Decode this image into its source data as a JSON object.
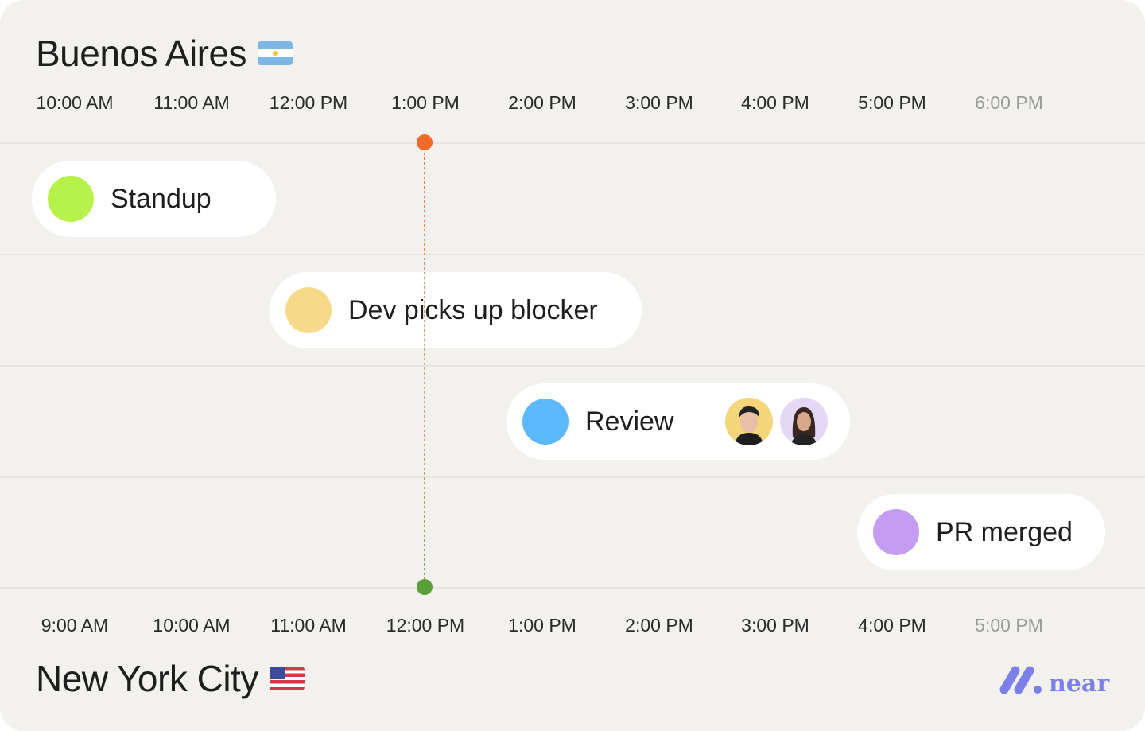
{
  "top_city": {
    "name": "Buenos Aires",
    "flag": "argentina-flag"
  },
  "bottom_city": {
    "name": "New York City",
    "flag": "us-flag"
  },
  "top_times": [
    "10:00 AM",
    "11:00 AM",
    "12:00 PM",
    "1:00 PM",
    "2:00 PM",
    "3:00 PM",
    "4:00 PM",
    "5:00 PM",
    "6:00 PM"
  ],
  "bottom_times": [
    "9:00 AM",
    "10:00 AM",
    "11:00 AM",
    "12:00 PM",
    "1:00 PM",
    "2:00 PM",
    "3:00 PM",
    "4:00 PM",
    "5:00 PM"
  ],
  "events": [
    {
      "label": "Standup",
      "color": "#b6f24a"
    },
    {
      "label": "Dev picks up blocker",
      "color": "#f7d98a"
    },
    {
      "label": "Review",
      "color": "#5ab8fb"
    },
    {
      "label": "PR merged",
      "color": "#c49df2"
    }
  ],
  "current_time_marker": {
    "top_color": "#f26b2a",
    "bottom_color": "#5a9e3a"
  },
  "brand": {
    "name": "near",
    "color": "#7b7fe8"
  }
}
